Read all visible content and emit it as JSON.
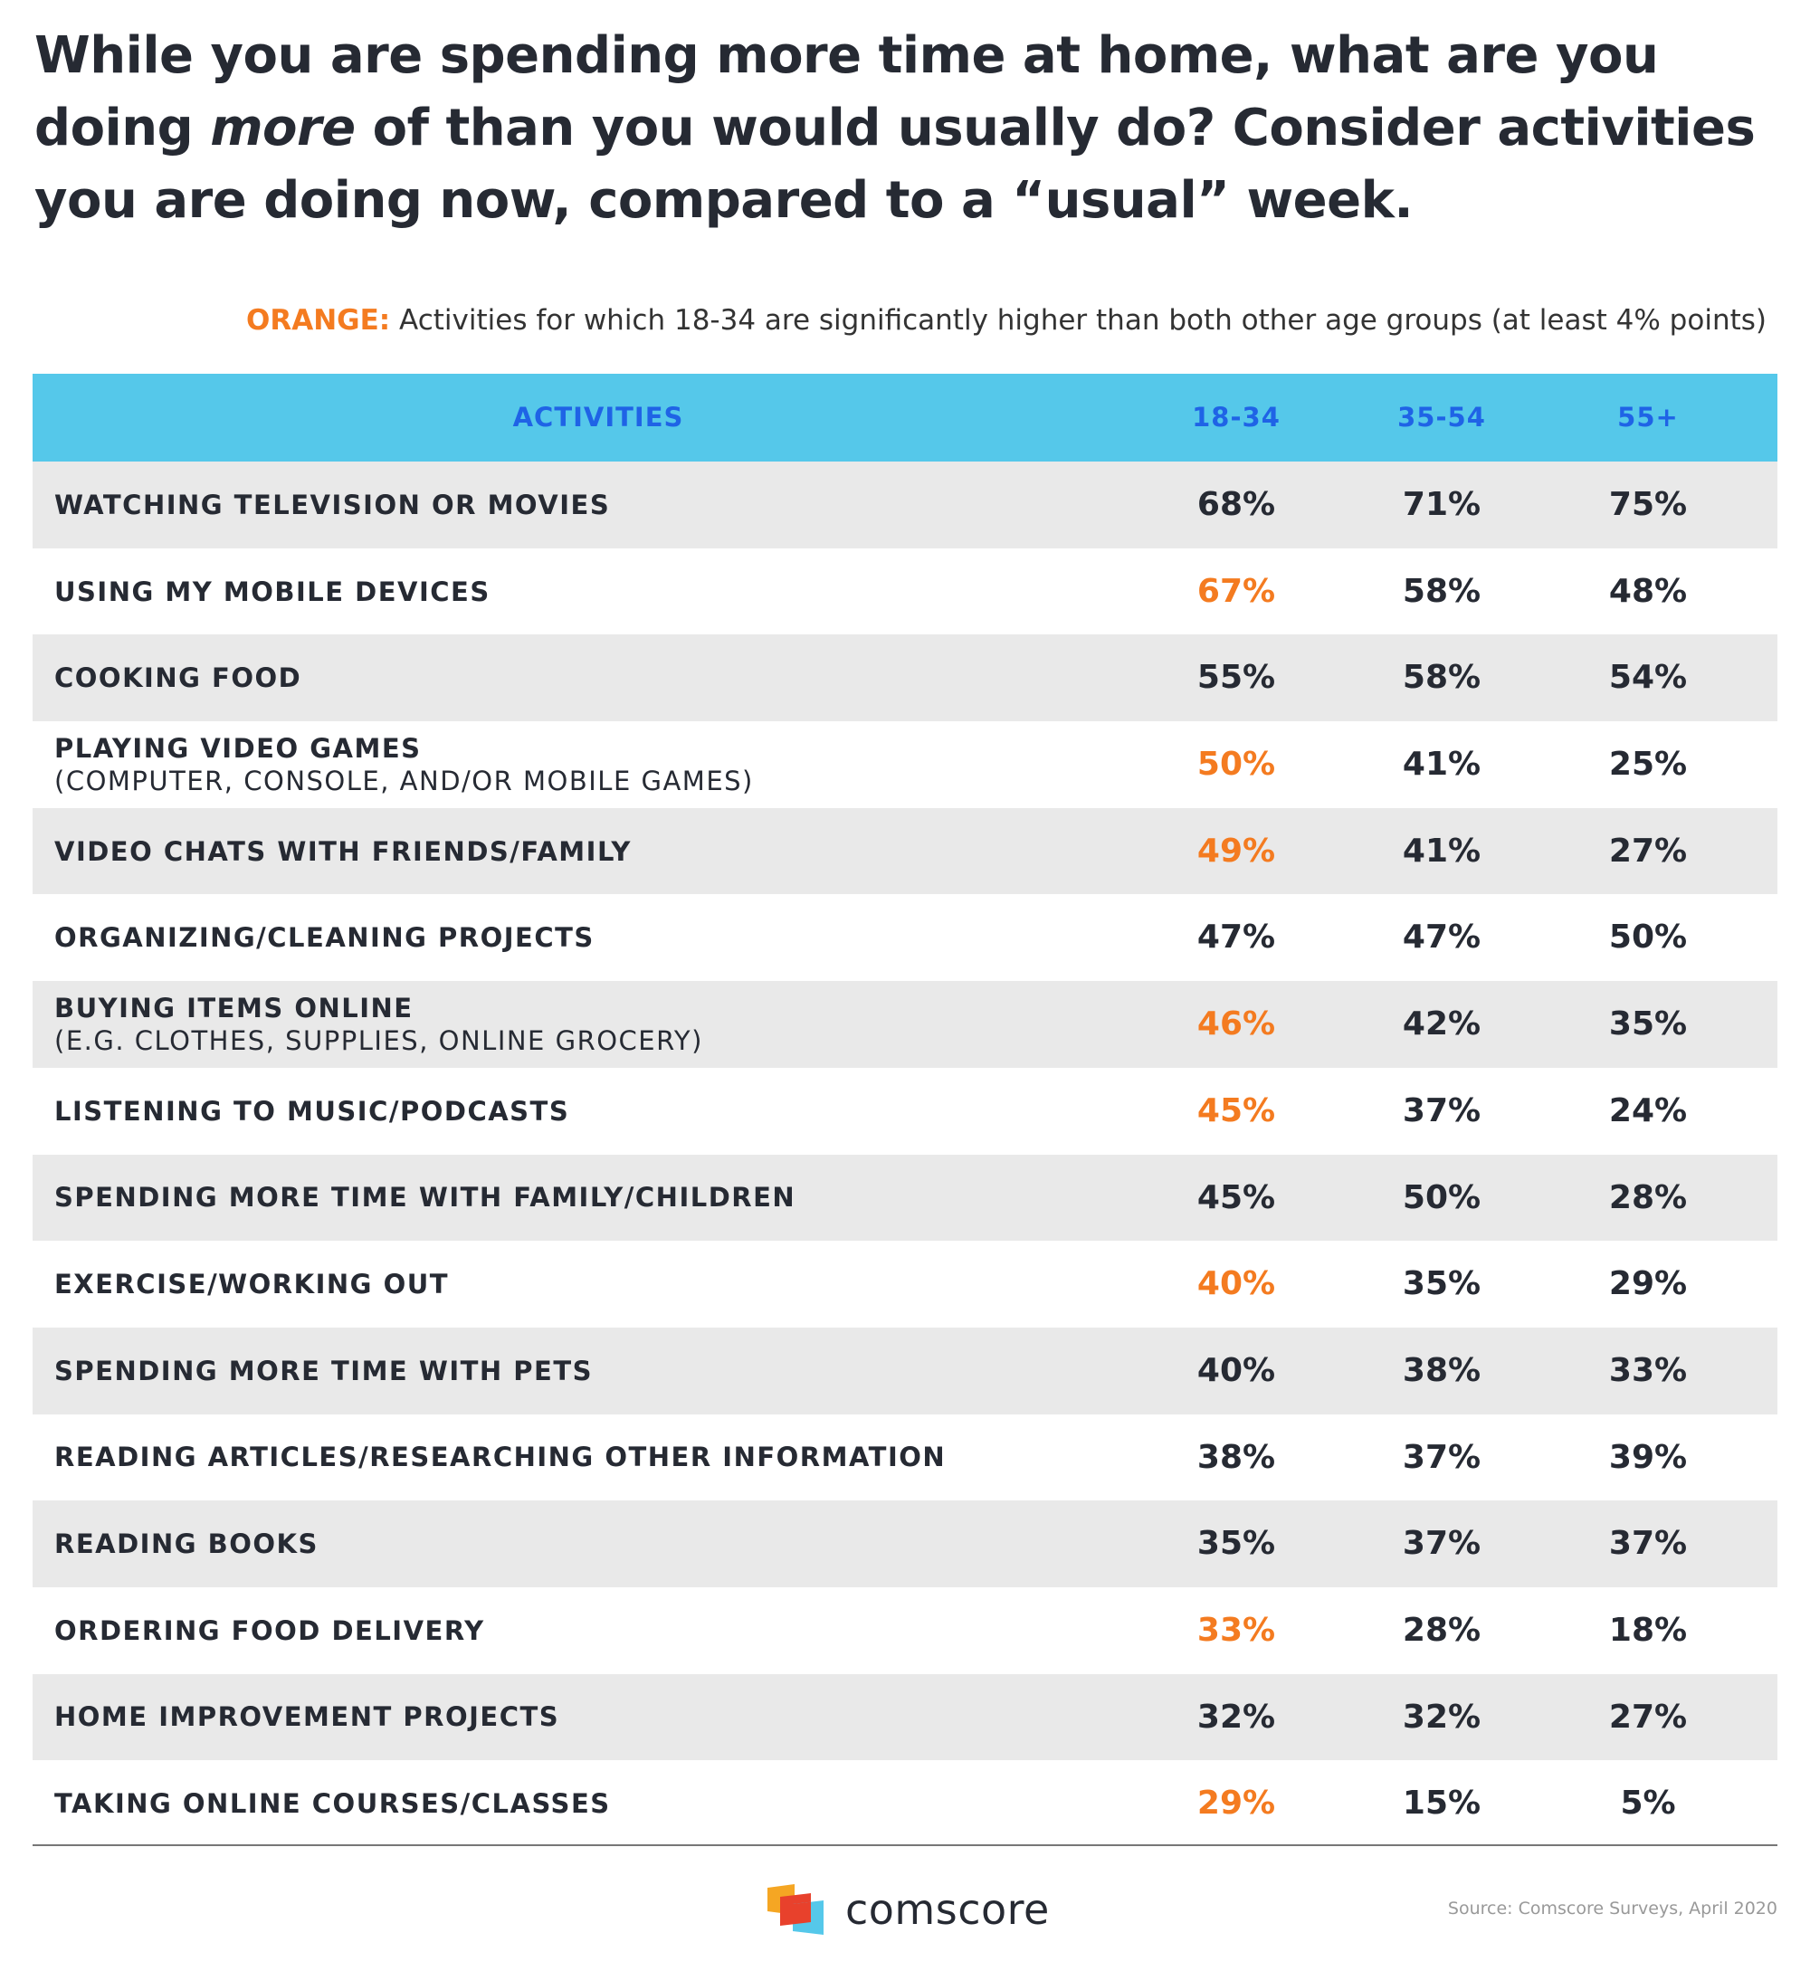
{
  "title_parts": {
    "p1": "While you are spending more time at home, what are you doing ",
    "em": "more",
    "p2": " of than you would usually do? Consider activities you are doing now, compared to a “usual” week."
  },
  "legend": {
    "key": "ORANGE:",
    "text": " Activities for which 18-34 are significantly higher than both other age groups (at least 4% points)"
  },
  "colors": {
    "header_bg": "#55c8ea",
    "header_text": "#1f63e6",
    "highlight": "#f47b20",
    "row_shade": "#e9e9e9",
    "text": "#262a33"
  },
  "chart_data": {
    "type": "table",
    "columns": [
      "ACTIVITIES",
      "18-34",
      "35-54",
      "55+"
    ],
    "rows": [
      {
        "activity": "WATCHING TELEVISION OR MOVIES",
        "detail": "",
        "values": [
          "68%",
          "71%",
          "75%"
        ],
        "highlight": false
      },
      {
        "activity": "USING MY MOBILE DEVICES",
        "detail": "",
        "values": [
          "67%",
          "58%",
          "48%"
        ],
        "highlight": true
      },
      {
        "activity": "COOKING FOOD",
        "detail": "",
        "values": [
          "55%",
          "58%",
          "54%"
        ],
        "highlight": false
      },
      {
        "activity": "PLAYING VIDEO GAMES",
        "detail": "(COMPUTER, CONSOLE, AND/OR MOBILE GAMES)",
        "values": [
          "50%",
          "41%",
          "25%"
        ],
        "highlight": true
      },
      {
        "activity": "VIDEO CHATS WITH FRIENDS/FAMILY",
        "detail": "",
        "values": [
          "49%",
          "41%",
          "27%"
        ],
        "highlight": true
      },
      {
        "activity": "ORGANIZING/CLEANING PROJECTS",
        "detail": "",
        "values": [
          "47%",
          "47%",
          "50%"
        ],
        "highlight": false
      },
      {
        "activity": "BUYING ITEMS ONLINE",
        "detail": "(E.G. CLOTHES, SUPPLIES, ONLINE GROCERY)",
        "values": [
          "46%",
          "42%",
          "35%"
        ],
        "highlight": true
      },
      {
        "activity": "LISTENING TO MUSIC/PODCASTS",
        "detail": "",
        "values": [
          "45%",
          "37%",
          "24%"
        ],
        "highlight": true
      },
      {
        "activity": "SPENDING MORE TIME WITH FAMILY/CHILDREN",
        "detail": "",
        "values": [
          "45%",
          "50%",
          "28%"
        ],
        "highlight": false
      },
      {
        "activity": "EXERCISE/WORKING OUT",
        "detail": "",
        "values": [
          "40%",
          "35%",
          "29%"
        ],
        "highlight": true
      },
      {
        "activity": "SPENDING MORE TIME WITH PETS",
        "detail": "",
        "values": [
          "40%",
          "38%",
          "33%"
        ],
        "highlight": false
      },
      {
        "activity": "READING ARTICLES/RESEARCHING OTHER INFORMATION",
        "detail": "",
        "values": [
          "38%",
          "37%",
          "39%"
        ],
        "highlight": false
      },
      {
        "activity": "READING BOOKS",
        "detail": "",
        "values": [
          "35%",
          "37%",
          "37%"
        ],
        "highlight": false
      },
      {
        "activity": "ORDERING FOOD DELIVERY",
        "detail": "",
        "values": [
          "33%",
          "28%",
          "18%"
        ],
        "highlight": true
      },
      {
        "activity": "HOME IMPROVEMENT PROJECTS",
        "detail": "",
        "values": [
          "32%",
          "32%",
          "27%"
        ],
        "highlight": false
      },
      {
        "activity": "TAKING ONLINE COURSES/CLASSES",
        "detail": "",
        "values": [
          "29%",
          "15%",
          "5%"
        ],
        "highlight": true
      }
    ]
  },
  "footer": {
    "logo_text": "comscore",
    "source": "Source: Comscore Surveys, April 2020"
  }
}
